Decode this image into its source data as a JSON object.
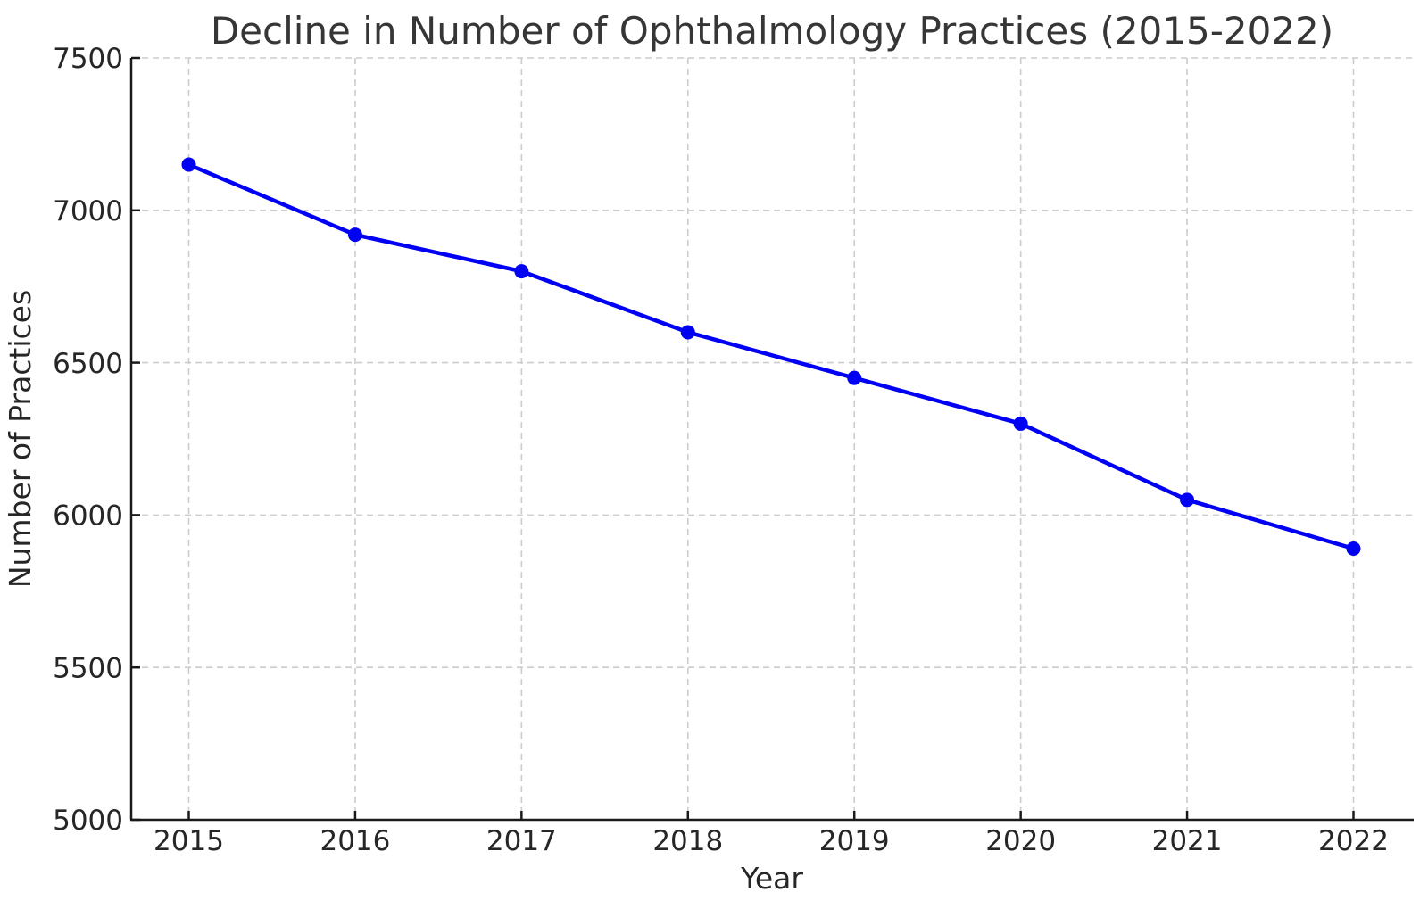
{
  "chart_data": {
    "type": "line",
    "title": "Decline in Number of Ophthalmology Practices (2015-2022)",
    "xlabel": "Year",
    "ylabel": "Number of Practices",
    "categories": [
      "2015",
      "2016",
      "2017",
      "2018",
      "2019",
      "2020",
      "2021",
      "2022"
    ],
    "series": [
      {
        "name": "Number of Practices",
        "values": [
          7150,
          6920,
          6800,
          6600,
          6450,
          6300,
          6050,
          5890
        ]
      }
    ],
    "ylim": [
      5000,
      7500
    ],
    "yticks": [
      5000,
      5500,
      6000,
      6500,
      7000,
      7500
    ],
    "ytick_labels": [
      "5000",
      "5500",
      "6000",
      "6500",
      "7000",
      "7500"
    ],
    "grid": true,
    "grid_style": "dashed",
    "legend": "none",
    "colors": {
      "line": "#0000f5",
      "marker": "#0000f5",
      "grid": "#cccccc",
      "spine": "#1a1a1a",
      "tick": "#1a1a1a",
      "text": "#262626",
      "title_text": "#363636",
      "background": "#ffffff"
    },
    "marker": "circle",
    "line_width": 4.5,
    "marker_radius": 8
  }
}
